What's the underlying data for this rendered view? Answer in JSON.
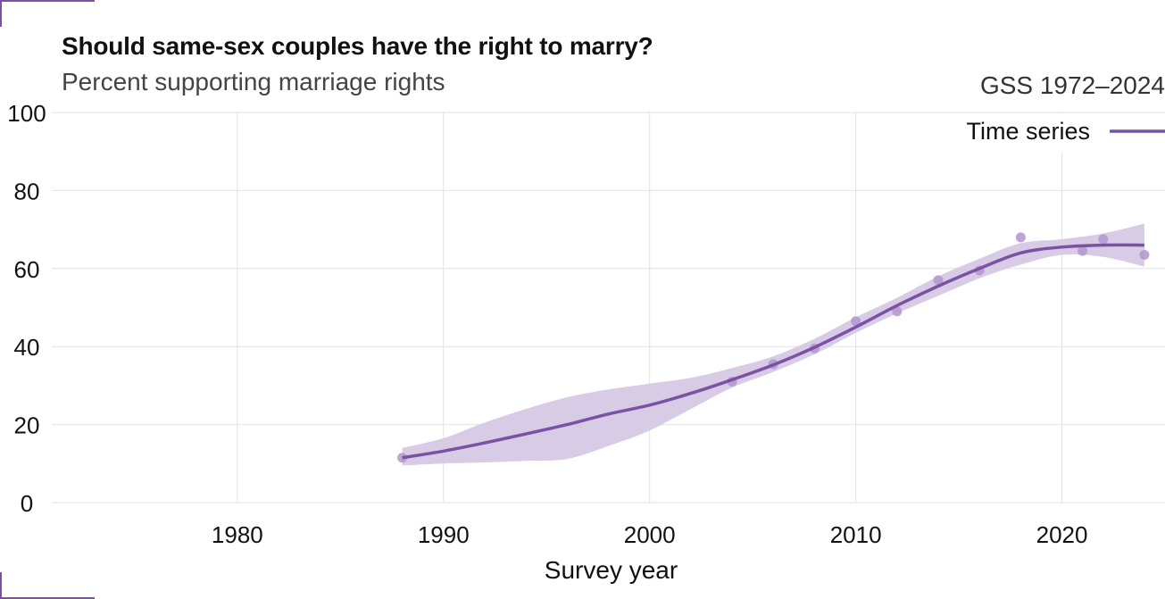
{
  "header": {
    "title": "Should same-sex couples have the right to marry?",
    "subtitle": "Percent supporting marriage rights",
    "source": "GSS 1972–2024"
  },
  "colors": {
    "series": "#7b52a3",
    "band": "#d6c8e5",
    "points": "#b59ad0",
    "grid": "#e2e2e2",
    "frame": "#7a52a0"
  },
  "chart_data": {
    "type": "line",
    "title": "Should same-sex couples have the right to marry?",
    "subtitle": "Percent supporting marriage rights",
    "xlabel": "Survey year",
    "ylabel": "",
    "xlim": [
      1971,
      2025
    ],
    "ylim": [
      0,
      100
    ],
    "x_ticks": [
      1980,
      1990,
      2000,
      2010,
      2020
    ],
    "y_ticks": [
      0,
      20,
      40,
      60,
      80,
      100
    ],
    "grid": true,
    "legend": {
      "position": "top-right",
      "entries": [
        "Time series"
      ]
    },
    "points": [
      {
        "x": 1988,
        "y": 11.5
      },
      {
        "x": 2004,
        "y": 31
      },
      {
        "x": 2006,
        "y": 35.5
      },
      {
        "x": 2008,
        "y": 39.5
      },
      {
        "x": 2010,
        "y": 46.5
      },
      {
        "x": 2012,
        "y": 49
      },
      {
        "x": 2014,
        "y": 57
      },
      {
        "x": 2016,
        "y": 59.5
      },
      {
        "x": 2018,
        "y": 68
      },
      {
        "x": 2021,
        "y": 64.5
      },
      {
        "x": 2022,
        "y": 67.5
      },
      {
        "x": 2024,
        "y": 63.5
      }
    ],
    "series": [
      {
        "name": "Time series",
        "x": [
          1988,
          1990,
          1992,
          1994,
          1996,
          1998,
          2000,
          2002,
          2004,
          2006,
          2008,
          2010,
          2012,
          2014,
          2016,
          2018,
          2020,
          2022,
          2024
        ],
        "y": [
          11.5,
          13.2,
          15.3,
          17.6,
          20.0,
          22.7,
          25.0,
          28.0,
          31.5,
          35.3,
          39.8,
          45.0,
          50.5,
          55.5,
          60.0,
          64.0,
          65.5,
          66.0,
          66.0
        ],
        "lower": [
          9.5,
          10.0,
          10.3,
          10.7,
          11.2,
          14.5,
          18.5,
          24.0,
          29.5,
          33.5,
          38.0,
          43.5,
          48.5,
          53.0,
          57.5,
          61.0,
          63.5,
          63.0,
          60.5
        ],
        "upper": [
          14.0,
          16.5,
          20.5,
          24.0,
          27.0,
          29.0,
          30.5,
          32.0,
          34.5,
          37.5,
          42.0,
          47.5,
          52.5,
          58.0,
          62.5,
          66.5,
          67.5,
          69.0,
          71.5
        ]
      }
    ]
  }
}
